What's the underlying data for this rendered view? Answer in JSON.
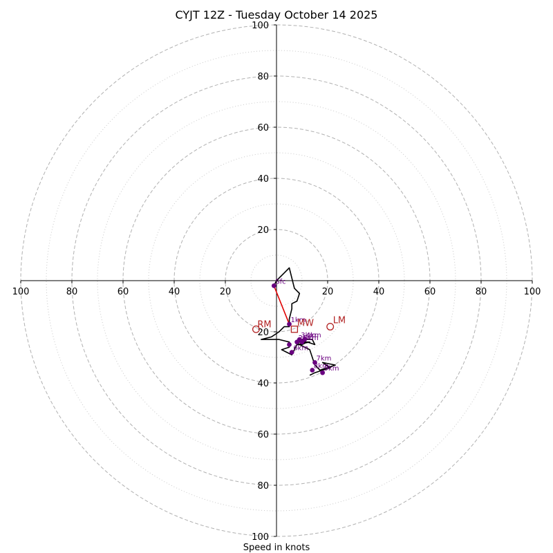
{
  "chart_data": {
    "type": "hodograph",
    "title": "CYJT 12Z - Tuesday October 14 2025",
    "xlabel": "Speed in knots",
    "ylabel": "",
    "range": [
      -100,
      100
    ],
    "ring_step": 20,
    "ticks": {
      "x_left": [
        "100",
        "80",
        "60",
        "40",
        "20"
      ],
      "x_right": [
        "20",
        "40",
        "60",
        "80",
        "100"
      ],
      "y_top": [
        "20",
        "40",
        "60",
        "80",
        "100"
      ],
      "y_bottom": [
        "20",
        "40",
        "60",
        "80",
        "100"
      ]
    },
    "hodograph_trace": [
      [
        -1,
        -2
      ],
      [
        0,
        0
      ],
      [
        3,
        3
      ],
      [
        5,
        5
      ],
      [
        7,
        -3
      ],
      [
        9,
        -5
      ],
      [
        8,
        -8
      ],
      [
        6,
        -9
      ],
      [
        6,
        -11
      ],
      [
        5,
        -15
      ],
      [
        5,
        -18
      ],
      [
        3,
        -18
      ],
      [
        1,
        -20
      ],
      [
        -2,
        -22
      ],
      [
        -6,
        -23
      ],
      [
        1,
        -23
      ],
      [
        5,
        -24
      ],
      [
        5,
        -26
      ],
      [
        2,
        -27
      ],
      [
        4,
        -28
      ],
      [
        6,
        -29
      ],
      [
        8,
        -25
      ],
      [
        10,
        -25
      ],
      [
        12,
        -24
      ],
      [
        15,
        -25
      ],
      [
        14,
        -23
      ],
      [
        10,
        -23
      ],
      [
        9,
        -24
      ],
      [
        8,
        -25
      ],
      [
        13,
        -24
      ],
      [
        11,
        -24
      ],
      [
        9,
        -25
      ],
      [
        13,
        -27
      ],
      [
        15,
        -33
      ],
      [
        17,
        -35
      ],
      [
        20,
        -34
      ],
      [
        23,
        -33
      ],
      [
        18,
        -32
      ],
      [
        21,
        -34
      ],
      [
        15,
        -36
      ],
      [
        13,
        -37
      ]
    ],
    "bunkers_segment": [
      [
        -1,
        -2
      ],
      [
        5,
        -17
      ]
    ],
    "height_markers": [
      {
        "label": "Sfc",
        "u": -1,
        "v": -2
      },
      {
        "label": "1km",
        "u": 5,
        "v": -17
      },
      {
        "label": "2km",
        "u": 8,
        "v": -24
      },
      {
        "label": "3km",
        "u": 9,
        "v": -23
      },
      {
        "label": "4km",
        "u": 11,
        "v": -23
      },
      {
        "label": "5km",
        "u": 10,
        "v": -24
      },
      {
        "label": "6km",
        "u": 6,
        "v": -28
      },
      {
        "label": "",
        "u": 5,
        "v": -25
      },
      {
        "label": "7km",
        "u": 15,
        "v": -32
      },
      {
        "label": "8km",
        "u": 14,
        "v": -35
      },
      {
        "label": "9km",
        "u": 18,
        "v": -36
      }
    ],
    "storm_motions": [
      {
        "label": "RM",
        "u": -8,
        "v": -19,
        "marker": "circle"
      },
      {
        "label": "LM",
        "u": 21,
        "v": -18,
        "marker": "circle"
      },
      {
        "label": "MW",
        "u": 7,
        "v": -19,
        "marker": "square"
      }
    ],
    "colors": {
      "trace": "#000000",
      "bunkers": "#e00000",
      "markers": "#6a0080",
      "storm": "#b22222",
      "grid": "#b0b0b0",
      "grid_minor": "#c8c8c8"
    }
  }
}
